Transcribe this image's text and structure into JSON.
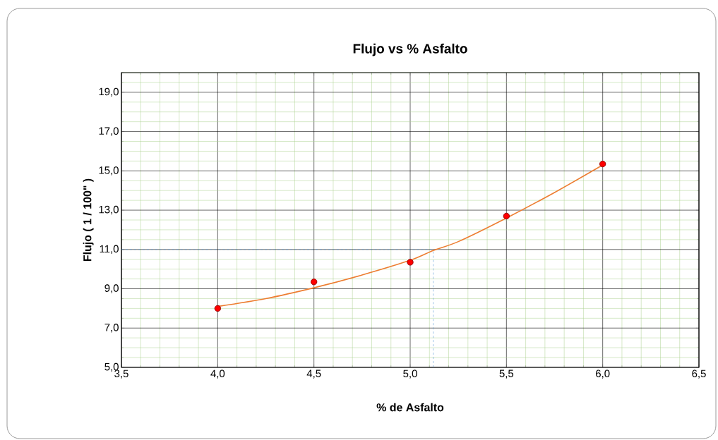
{
  "chart_data": {
    "type": "scatter",
    "title": "Flujo vs % Asfalto",
    "xlabel": "% de Asfalto",
    "ylabel": "Flujo ( 1 / 100\" )",
    "xlim": [
      3.5,
      6.5
    ],
    "xticks": [
      {
        "value": 3.5,
        "label": "3,5"
      },
      {
        "value": 3.6,
        "label": null
      },
      {
        "value": 3.7,
        "label": null
      },
      {
        "value": 3.8,
        "label": null
      },
      {
        "value": 3.9,
        "label": null
      },
      {
        "value": 4.0,
        "label": "4,0"
      },
      {
        "value": 4.1,
        "label": null
      },
      {
        "value": 4.2,
        "label": null
      },
      {
        "value": 4.3,
        "label": null
      },
      {
        "value": 4.4,
        "label": null
      },
      {
        "value": 4.5,
        "label": "4,5"
      },
      {
        "value": 4.6,
        "label": null
      },
      {
        "value": 4.7,
        "label": null
      },
      {
        "value": 4.8,
        "label": null
      },
      {
        "value": 4.9,
        "label": null
      },
      {
        "value": 5.0,
        "label": "5,0"
      },
      {
        "value": 5.1,
        "label": null
      },
      {
        "value": 5.2,
        "label": null
      },
      {
        "value": 5.3,
        "label": null
      },
      {
        "value": 5.4,
        "label": null
      },
      {
        "value": 5.5,
        "label": "5,5"
      },
      {
        "value": 5.6,
        "label": null
      },
      {
        "value": 5.7,
        "label": null
      },
      {
        "value": 5.8,
        "label": null
      },
      {
        "value": 5.9,
        "label": null
      },
      {
        "value": 6.0,
        "label": "6,0"
      },
      {
        "value": 6.1,
        "label": null
      },
      {
        "value": 6.2,
        "label": null
      },
      {
        "value": 6.3,
        "label": null
      },
      {
        "value": 6.4,
        "label": null
      },
      {
        "value": 6.5,
        "label": "6,5"
      }
    ],
    "ylim": [
      5,
      20
    ],
    "yticks": [
      {
        "value": 5,
        "label": "5,0"
      },
      {
        "value": 5.5,
        "label": null
      },
      {
        "value": 6,
        "label": null
      },
      {
        "value": 6.5,
        "label": null
      },
      {
        "value": 7,
        "label": "7,0"
      },
      {
        "value": 7.5,
        "label": null
      },
      {
        "value": 8,
        "label": null
      },
      {
        "value": 8.5,
        "label": null
      },
      {
        "value": 9,
        "label": "9,0"
      },
      {
        "value": 9.5,
        "label": null
      },
      {
        "value": 10,
        "label": null
      },
      {
        "value": 10.5,
        "label": null
      },
      {
        "value": 11,
        "label": "11,0"
      },
      {
        "value": 11.5,
        "label": null
      },
      {
        "value": 12,
        "label": null
      },
      {
        "value": 12.5,
        "label": null
      },
      {
        "value": 13,
        "label": "13,0"
      },
      {
        "value": 13.5,
        "label": null
      },
      {
        "value": 14,
        "label": null
      },
      {
        "value": 14.5,
        "label": null
      },
      {
        "value": 15,
        "label": "15,0"
      },
      {
        "value": 15.5,
        "label": null
      },
      {
        "value": 16,
        "label": null
      },
      {
        "value": 16.5,
        "label": null
      },
      {
        "value": 17,
        "label": "17,0"
      },
      {
        "value": 17.5,
        "label": null
      },
      {
        "value": 18,
        "label": null
      },
      {
        "value": 18.5,
        "label": null
      },
      {
        "value": 19,
        "label": "19,0"
      },
      {
        "value": 19.5,
        "label": null
      },
      {
        "value": 20,
        "label": null
      }
    ],
    "grid": true,
    "marker": "circle",
    "series": [
      {
        "type": "line",
        "color": "#ed7d31",
        "marker": "none",
        "x": [
          4.0,
          4.25,
          4.5,
          4.75,
          5.0,
          5.12,
          5.25,
          5.5,
          5.75,
          6.0
        ],
        "values": [
          8.1,
          8.5,
          9.05,
          9.7,
          10.45,
          10.95,
          11.4,
          12.6,
          13.9,
          15.3
        ]
      },
      {
        "color": "#ff0000",
        "x": [
          4.0,
          4.5,
          5.0,
          5.5,
          6.0
        ],
        "values": [
          8.0,
          9.35,
          10.35,
          12.7,
          15.35
        ]
      }
    ],
    "ref_lines": [
      {
        "axis": "y",
        "value": 11,
        "color": "#5b9bd5",
        "line_style": "dashed"
      },
      {
        "axis": "x",
        "value": 5.12,
        "color": "#5b9bd5",
        "line_style": "dashed"
      }
    ]
  }
}
